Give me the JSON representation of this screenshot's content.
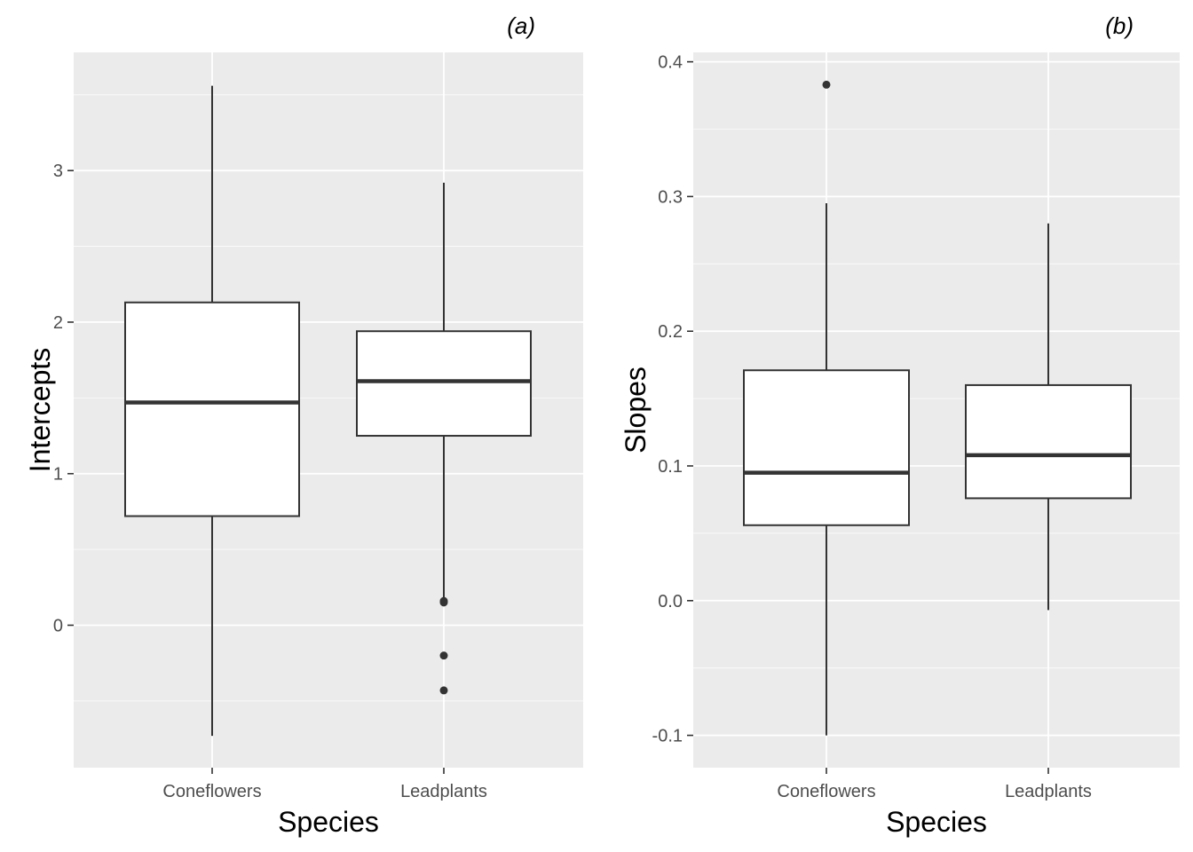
{
  "colors": {
    "panel_background": "#ebebeb",
    "grid_line": "#ffffff",
    "box_fill": "#ffffff",
    "box_stroke": "#333333",
    "outlier": "#333333",
    "tick_text": "#4d4d4d"
  },
  "chart_data": [
    {
      "type": "box",
      "panel_tag": "(a)",
      "xlabel": "Species",
      "ylabel": "Intercepts",
      "categories": [
        "Coneflowers",
        "Leadplants"
      ],
      "yticks": [
        0,
        1,
        2,
        3
      ],
      "ytick_labels": [
        "0",
        "1",
        "2",
        "3"
      ],
      "ylim": [
        -0.94,
        3.78
      ],
      "grid": true,
      "boxes": [
        {
          "category": "Coneflowers",
          "whisker_low": -0.73,
          "q1": 0.72,
          "median": 1.47,
          "q3": 2.13,
          "whisker_high": 3.56,
          "outliers": []
        },
        {
          "category": "Leadplants",
          "whisker_low": 0.18,
          "q1": 1.25,
          "median": 1.61,
          "q3": 1.94,
          "whisker_high": 2.92,
          "outliers": [
            0.16,
            0.15,
            -0.2,
            -0.43
          ]
        }
      ]
    },
    {
      "type": "box",
      "panel_tag": "(b)",
      "xlabel": "Species",
      "ylabel": "Slopes",
      "categories": [
        "Coneflowers",
        "Leadplants"
      ],
      "yticks": [
        -0.1,
        0.0,
        0.1,
        0.2,
        0.3,
        0.4
      ],
      "ytick_labels": [
        "-0.1",
        "0.0",
        "0.1",
        "0.2",
        "0.3",
        "0.4"
      ],
      "ylim": [
        -0.124,
        0.407
      ],
      "grid": true,
      "boxes": [
        {
          "category": "Coneflowers",
          "whisker_low": -0.1,
          "q1": 0.056,
          "median": 0.095,
          "q3": 0.171,
          "whisker_high": 0.295,
          "outliers": [
            0.383
          ]
        },
        {
          "category": "Leadplants",
          "whisker_low": -0.007,
          "q1": 0.076,
          "median": 0.108,
          "q3": 0.16,
          "whisker_high": 0.28,
          "outliers": []
        }
      ]
    }
  ]
}
